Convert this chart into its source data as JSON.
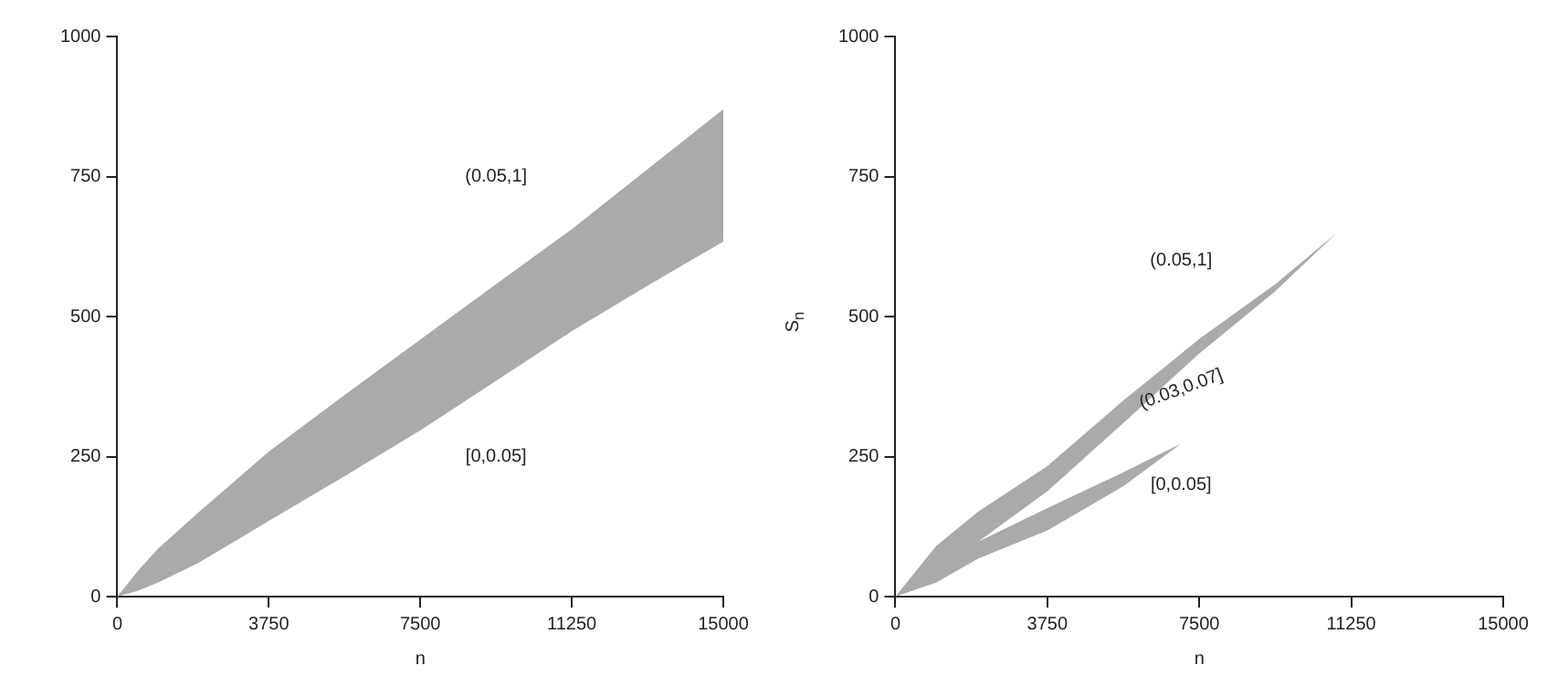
{
  "chart_data": [
    {
      "type": "area",
      "xlabel": "n",
      "xlim": [
        0,
        15000
      ],
      "xticks": [
        0,
        3750,
        7500,
        11250,
        15000
      ],
      "ylim": [
        0,
        1000
      ],
      "yticks": [
        0,
        250,
        500,
        750,
        1000
      ],
      "grid": false,
      "legend": false,
      "series": [
        {
          "color": "#aaaaaa",
          "x": [
            0,
            500,
            1000,
            2000,
            3750,
            5625,
            7500,
            9375,
            11250,
            13125,
            15000,
            15000,
            13125,
            11250,
            9375,
            7500,
            5625,
            3750,
            2000,
            1000,
            500
          ],
          "values": [
            0,
            45,
            85,
            150,
            259,
            360,
            459,
            558,
            656,
            763,
            870,
            634,
            555,
            474,
            385,
            297,
            215,
            135,
            60,
            25,
            10
          ]
        }
      ],
      "annotations": [
        "(0.05,1]",
        "[0,0.05]"
      ]
    },
    {
      "type": "area",
      "xlabel": "n",
      "ylabel": "S$_{n}$",
      "xlim": [
        0,
        15000
      ],
      "xticks": [
        0,
        3750,
        7500,
        11250,
        15000
      ],
      "ylim": [
        0,
        1000
      ],
      "yticks": [
        0,
        250,
        500,
        750,
        1000
      ],
      "grid": false,
      "legend": false,
      "series": [
        {
          "color": "#aaaaaa",
          "x": [
            0,
            1000,
            2045,
            3750,
            5625,
            7500,
            9375,
            10900,
            9375,
            7500,
            5625,
            3750,
            2045,
            3750,
            5625,
            7045,
            5625,
            3750,
            2045,
            1000
          ],
          "values": [
            0,
            90,
            152,
            233,
            350,
            460,
            558,
            650,
            545,
            434,
            310,
            188,
            98,
            158,
            222,
            273,
            197,
            118,
            68,
            25
          ]
        }
      ],
      "annotations": [
        "(0.05,1]",
        "(0.03,0.07]",
        "[0,0.05]"
      ]
    }
  ]
}
